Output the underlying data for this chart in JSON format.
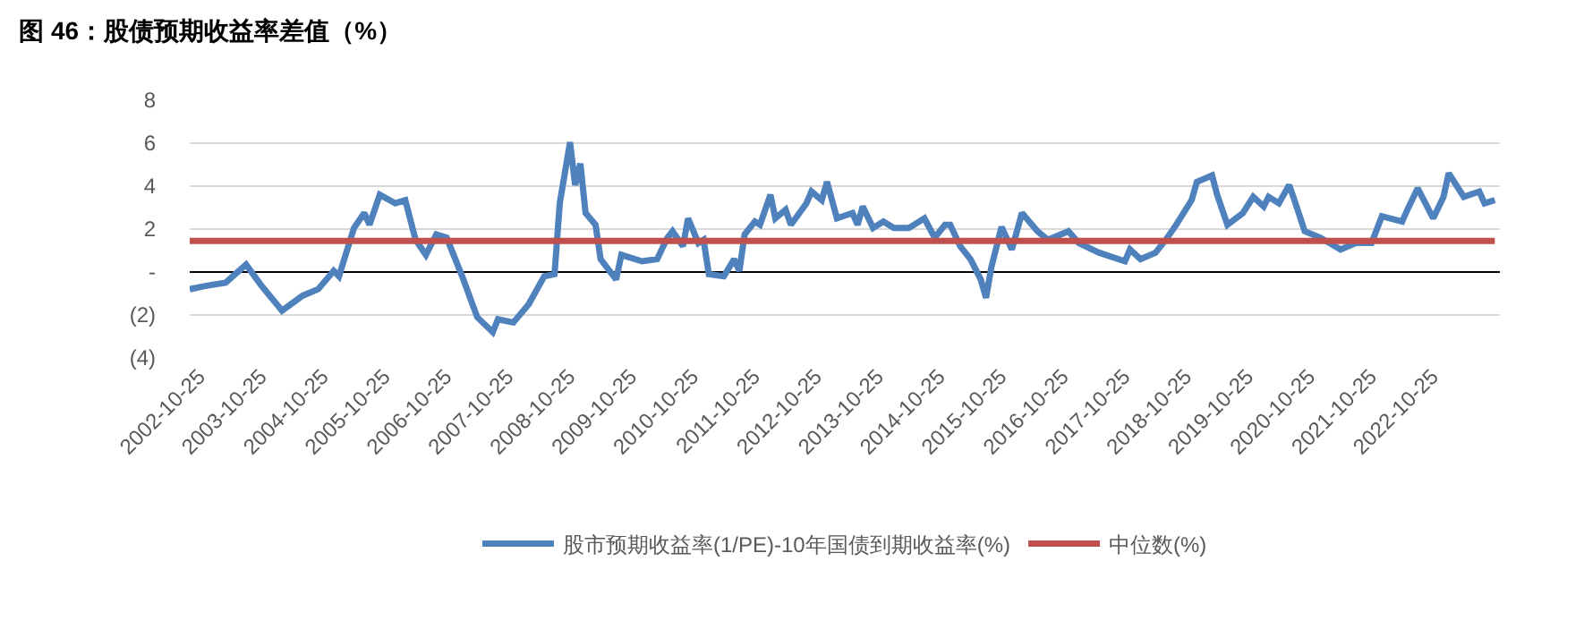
{
  "chart_data": {
    "type": "line",
    "title": "图 46：股债预期收益率差值（%）",
    "xlim": [
      "2002-09",
      "2023-12"
    ],
    "xticks": [
      "2002-10-25",
      "2003-10-25",
      "2004-10-25",
      "2005-10-25",
      "2006-10-25",
      "2007-10-25",
      "2008-10-25",
      "2009-10-25",
      "2010-10-25",
      "2011-10-25",
      "2012-10-25",
      "2013-10-25",
      "2014-10-25",
      "2015-10-25",
      "2016-10-25",
      "2017-10-25",
      "2018-10-25",
      "2019-10-25",
      "2020-10-25",
      "2021-10-25",
      "2022-10-25"
    ],
    "ylim": [
      -4,
      8
    ],
    "yticks": [
      {
        "value": -4,
        "label": "(4)"
      },
      {
        "value": -2,
        "label": "(2)"
      },
      {
        "value": 0,
        "label": "-"
      },
      2,
      4,
      6,
      8
    ],
    "grid": "y",
    "legend": "bottom",
    "marker": "none",
    "line_style": "solid",
    "series": [
      {
        "name": "股市预期收益率(1/PE)-10年国债到期收益率(%)",
        "color": "#4f81bd",
        "x": [
          "2002-09",
          "2002-12",
          "2003-04",
          "2003-08",
          "2003-11",
          "2004-03",
          "2004-07",
          "2004-10",
          "2005-01",
          "2005-02",
          "2005-05",
          "2005-07",
          "2005-08",
          "2005-10",
          "2006-01",
          "2006-03",
          "2006-05",
          "2006-07",
          "2006-09",
          "2006-11",
          "2007-02",
          "2007-05",
          "2007-08",
          "2007-09",
          "2007-12",
          "2008-03",
          "2008-06",
          "2008-08",
          "2008-09",
          "2008-11",
          "2008-12",
          "2009-01",
          "2009-02",
          "2009-04",
          "2009-05",
          "2009-08",
          "2009-09",
          "2010-01",
          "2010-04",
          "2010-06",
          "2010-07",
          "2010-09",
          "2010-10",
          "2010-12",
          "2011-01",
          "2011-02",
          "2011-05",
          "2011-07",
          "2011-08",
          "2011-09",
          "2011-11",
          "2011-12",
          "2012-02",
          "2012-03",
          "2012-05",
          "2012-06",
          "2012-09",
          "2012-10",
          "2012-12",
          "2013-01",
          "2013-03",
          "2013-06",
          "2013-07",
          "2013-08",
          "2013-10",
          "2013-12",
          "2014-02",
          "2014-05",
          "2014-08",
          "2014-10",
          "2014-12",
          "2015-01",
          "2015-03",
          "2015-05",
          "2015-07",
          "2015-08",
          "2015-09",
          "2015-11",
          "2016-01",
          "2016-03",
          "2016-06",
          "2016-08",
          "2016-12",
          "2017-02",
          "2017-06",
          "2017-11",
          "2017-12",
          "2018-02",
          "2018-05",
          "2018-07",
          "2018-09",
          "2018-12",
          "2019-01",
          "2019-04",
          "2019-05",
          "2019-07",
          "2019-10",
          "2019-12",
          "2020-02",
          "2020-03",
          "2020-05",
          "2020-07",
          "2020-08",
          "2020-10",
          "2021-01",
          "2021-05",
          "2021-08",
          "2021-11",
          "2022-01",
          "2022-05",
          "2022-06",
          "2022-08",
          "2022-11",
          "2023-01",
          "2023-02",
          "2023-05",
          "2023-08",
          "2023-09",
          "2023-11"
        ],
        "values": [
          -0.8,
          -0.65,
          -0.5,
          0.35,
          -0.65,
          -1.8,
          -1.1,
          -0.8,
          0.05,
          -0.2,
          2.05,
          2.75,
          2.2,
          3.6,
          3.2,
          3.35,
          1.5,
          0.8,
          1.75,
          1.6,
          -0.2,
          -2.1,
          -2.8,
          -2.2,
          -2.35,
          -1.5,
          -0.2,
          -0.1,
          3.2,
          6.05,
          4.05,
          5.05,
          2.75,
          2.2,
          0.6,
          -0.35,
          0.8,
          0.5,
          0.6,
          1.6,
          1.9,
          1.2,
          2.5,
          1.35,
          1.5,
          -0.1,
          -0.2,
          0.6,
          0.05,
          1.75,
          2.35,
          2.2,
          3.6,
          2.5,
          2.9,
          2.2,
          3.2,
          3.75,
          3.35,
          4.2,
          2.5,
          2.75,
          2.2,
          3.05,
          2.05,
          2.35,
          2.05,
          2.05,
          2.5,
          1.6,
          2.2,
          2.2,
          1.2,
          0.6,
          -0.35,
          -1.2,
          0.2,
          2.1,
          1.05,
          2.75,
          1.9,
          1.5,
          1.9,
          1.35,
          0.9,
          0.5,
          1.05,
          0.6,
          0.9,
          1.5,
          2.2,
          3.35,
          4.2,
          4.5,
          3.6,
          2.2,
          2.75,
          3.5,
          3.05,
          3.5,
          3.2,
          4.05,
          3.35,
          1.9,
          1.6,
          1.05,
          1.35,
          1.35,
          2.6,
          2.35,
          2.9,
          3.9,
          2.5,
          3.5,
          4.6,
          3.5,
          3.75,
          3.2,
          3.35
        ]
      },
      {
        "name": "中位数(%)",
        "color": "#c0504d",
        "x": [
          "2002-09",
          "2023-11"
        ],
        "values": [
          1.45,
          1.45
        ]
      }
    ]
  }
}
